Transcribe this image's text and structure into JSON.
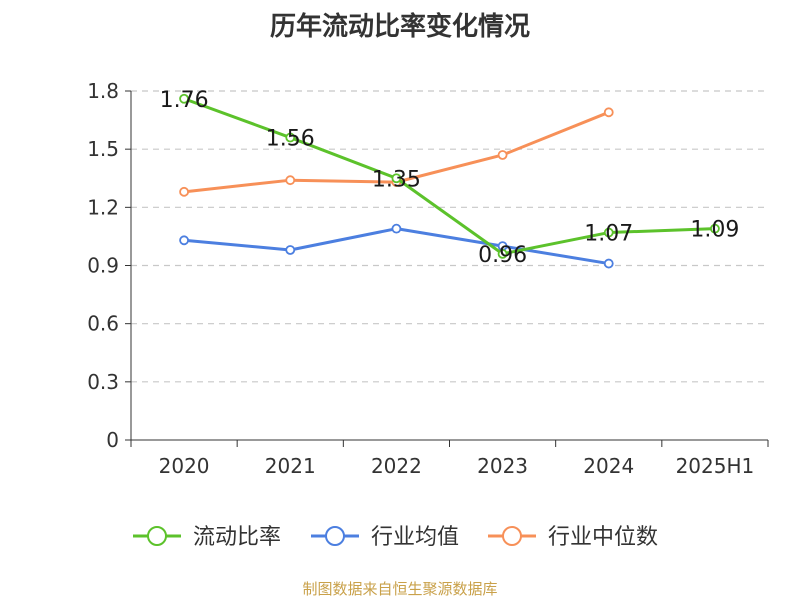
{
  "title": "历年流动比率变化情况",
  "source": "制图数据来自恒生聚源数据库",
  "colors": {
    "current_ratio": "#5cc22b",
    "industry_mean": "#4c7fe0",
    "industry_median": "#f79058",
    "grid": "#c8c8c8",
    "axis": "#333333"
  },
  "chart_data": {
    "type": "line",
    "title": "历年流动比率变化情况",
    "categories": [
      "2020",
      "2021",
      "2022",
      "2023",
      "2024",
      "2025H1"
    ],
    "yticks": [
      "0",
      "0.3",
      "0.6",
      "0.9",
      "1.2",
      "1.5",
      "1.8"
    ],
    "ylim": [
      0,
      1.8
    ],
    "grid": true,
    "legend_position": "bottom",
    "series": [
      {
        "name": "流动比率",
        "color": "#5cc22b",
        "values": [
          1.76,
          1.56,
          1.35,
          0.96,
          1.07,
          1.09
        ],
        "labels": [
          "1.76",
          "1.56",
          "1.35",
          "0.96",
          "1.07",
          "1.09"
        ]
      },
      {
        "name": "行业均值",
        "color": "#4c7fe0",
        "values": [
          1.03,
          0.98,
          1.09,
          1.0,
          0.91,
          null
        ]
      },
      {
        "name": "行业中位数",
        "color": "#f79058",
        "values": [
          1.28,
          1.34,
          1.33,
          1.47,
          1.69,
          null
        ]
      }
    ]
  }
}
